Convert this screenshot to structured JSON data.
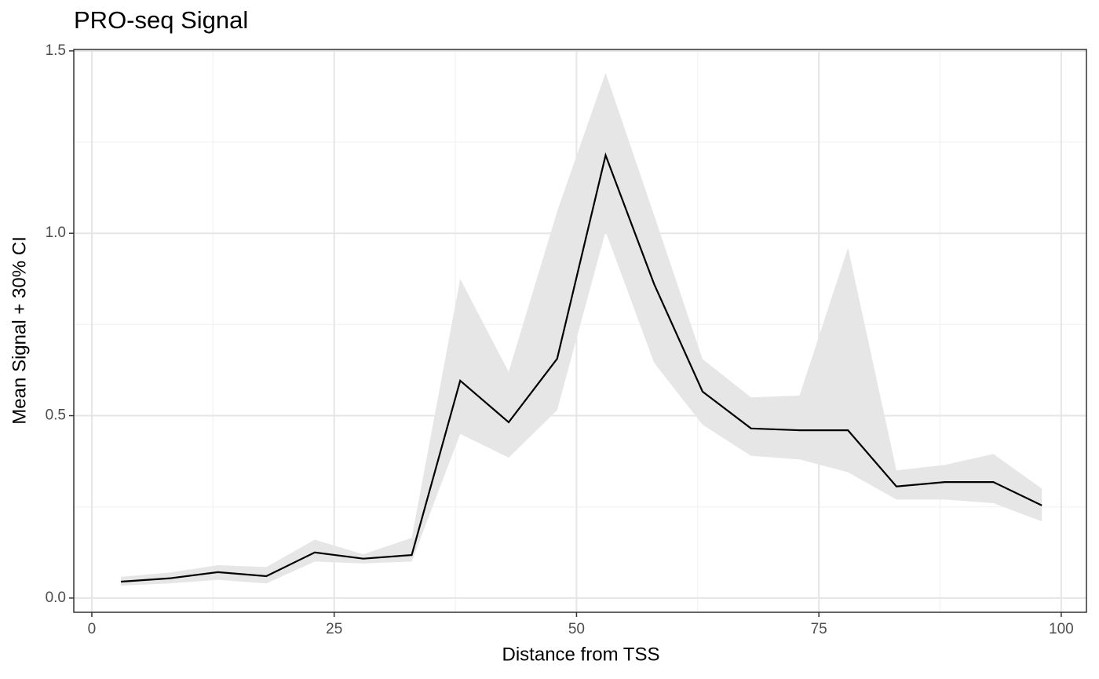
{
  "chart_data": {
    "type": "ribbon-line",
    "title": "PRO-seq Signal",
    "x_label": "Distance from TSS",
    "y_label": "Mean Signal + 30% CI",
    "x": [
      3,
      8,
      13,
      18,
      23,
      28,
      33,
      38,
      43,
      48,
      53,
      58,
      63,
      68,
      73,
      78,
      83,
      88,
      93,
      98
    ],
    "values": [
      0.045,
      0.054,
      0.071,
      0.06,
      0.125,
      0.108,
      0.118,
      0.596,
      0.482,
      0.656,
      1.214,
      0.861,
      0.566,
      0.465,
      0.46,
      0.46,
      0.306,
      0.318,
      0.318,
      0.254
    ],
    "lower": [
      0.034,
      0.04,
      0.05,
      0.04,
      0.1,
      0.095,
      0.1,
      0.45,
      0.385,
      0.515,
      1.005,
      0.645,
      0.475,
      0.39,
      0.38,
      0.345,
      0.27,
      0.27,
      0.26,
      0.21
    ],
    "upper": [
      0.058,
      0.07,
      0.09,
      0.085,
      0.16,
      0.12,
      0.165,
      0.875,
      0.62,
      1.06,
      1.44,
      1.05,
      0.655,
      0.55,
      0.555,
      0.96,
      0.35,
      0.365,
      0.395,
      0.3
    ],
    "color": "#000000",
    "ribbon_color": "#e6e6e6",
    "xlim": [
      -1.86,
      102.6
    ],
    "ylim": [
      -0.039,
      1.504
    ],
    "xticks": [
      0,
      25,
      50,
      75,
      100
    ],
    "yticks": [
      {
        "value": 0,
        "label": "0.0"
      },
      {
        "value": 0.5,
        "label": "0.5"
      },
      {
        "value": 1,
        "label": "1.0"
      },
      {
        "value": 1.5,
        "label": "1.5"
      }
    ],
    "grid": true
  }
}
